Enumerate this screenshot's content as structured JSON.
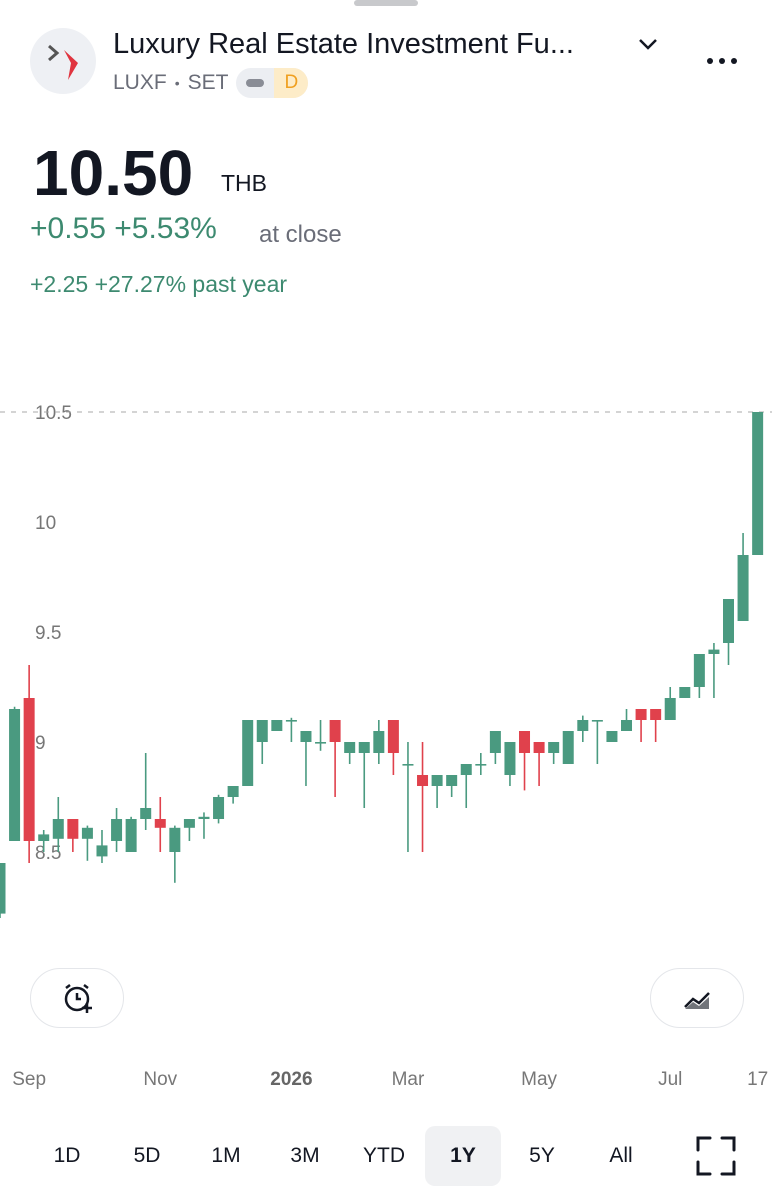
{
  "header": {
    "title": "Luxury Real Estate Investment Fu...",
    "ticker": "LUXF",
    "separator": "•",
    "exchange": "SET",
    "badge": "D",
    "price": "10.50",
    "currency": "THB",
    "change": "+0.55 +5.53%",
    "change_note": "at close",
    "year_change": "+2.25 +27.27% past year"
  },
  "chart_data": {
    "type": "candlestick",
    "categories": [
      null,
      null,
      "Sep",
      null,
      null,
      null,
      null,
      null,
      null,
      null,
      null,
      "Nov",
      null,
      null,
      null,
      null,
      null,
      null,
      null,
      null,
      "2026",
      null,
      null,
      null,
      null,
      null,
      null,
      null,
      "Mar",
      null,
      null,
      null,
      null,
      null,
      null,
      null,
      null,
      "May",
      null,
      null,
      null,
      null,
      null,
      null,
      null,
      null,
      "Jul",
      null,
      null,
      null,
      null,
      null,
      "17"
    ],
    "open": [
      8.22,
      8.55,
      9.2,
      8.55,
      8.56,
      8.65,
      8.56,
      8.48,
      8.55,
      8.5,
      8.65,
      8.65,
      8.5,
      8.61,
      8.65,
      8.65,
      8.75,
      8.8,
      9.0,
      9.05,
      9.1,
      9.0,
      9.0,
      9.1,
      8.95,
      8.95,
      8.95,
      9.1,
      8.9,
      8.85,
      8.8,
      8.8,
      8.85,
      8.9,
      8.95,
      8.85,
      9.05,
      9.0,
      8.95,
      8.9,
      9.05,
      9.1,
      9.0,
      9.05,
      9.15,
      9.15,
      9.1,
      9.2,
      9.25,
      9.4,
      9.45,
      9.55,
      9.85
    ],
    "high": [
      8.45,
      9.16,
      9.35,
      8.6,
      8.75,
      8.65,
      8.62,
      8.6,
      8.7,
      8.66,
      8.95,
      8.75,
      8.62,
      8.65,
      8.68,
      8.76,
      8.8,
      9.1,
      9.1,
      9.1,
      9.11,
      9.05,
      9.1,
      9.1,
      9.0,
      9.0,
      9.1,
      9.1,
      9.0,
      9.0,
      8.85,
      8.85,
      8.9,
      8.95,
      9.05,
      9.0,
      9.05,
      9.0,
      9.0,
      9.05,
      9.12,
      9.1,
      9.05,
      9.15,
      9.15,
      9.15,
      9.25,
      9.25,
      9.4,
      9.45,
      9.65,
      9.95,
      10.5
    ],
    "low": [
      8.2,
      8.55,
      8.45,
      8.5,
      8.5,
      8.5,
      8.46,
      8.45,
      8.5,
      8.5,
      8.6,
      8.5,
      8.36,
      8.55,
      8.56,
      8.63,
      8.72,
      8.8,
      8.9,
      9.05,
      9.0,
      8.8,
      8.96,
      8.75,
      8.9,
      8.7,
      8.9,
      8.85,
      8.5,
      8.5,
      8.7,
      8.75,
      8.7,
      8.85,
      8.9,
      8.8,
      8.78,
      8.8,
      8.9,
      8.9,
      9.0,
      8.9,
      9.0,
      9.05,
      9.0,
      9.0,
      9.1,
      9.2,
      9.2,
      9.2,
      9.35,
      9.55,
      9.85
    ],
    "close": [
      8.45,
      9.15,
      8.55,
      8.58,
      8.65,
      8.56,
      8.61,
      8.53,
      8.65,
      8.65,
      8.7,
      8.61,
      8.61,
      8.65,
      8.66,
      8.75,
      8.8,
      9.1,
      9.1,
      9.1,
      9.1,
      9.05,
      9.0,
      9.0,
      9.0,
      9.0,
      9.05,
      8.95,
      8.9,
      8.8,
      8.85,
      8.85,
      8.9,
      8.9,
      9.05,
      9.0,
      8.95,
      8.95,
      9.0,
      9.05,
      9.1,
      9.1,
      9.05,
      9.1,
      9.1,
      9.1,
      9.2,
      9.25,
      9.4,
      9.42,
      9.65,
      9.85,
      10.5
    ],
    "up_color": "#4a9a80",
    "down_color": "#e0414c",
    "ylim": [
      8.1,
      10.85
    ],
    "yticks": [
      8.5,
      9,
      9.5,
      10,
      10.5
    ],
    "grid": false
  },
  "ranges": {
    "options": [
      "1D",
      "5D",
      "1M",
      "3M",
      "YTD",
      "1Y",
      "5Y",
      "All"
    ],
    "selected": "1Y"
  }
}
